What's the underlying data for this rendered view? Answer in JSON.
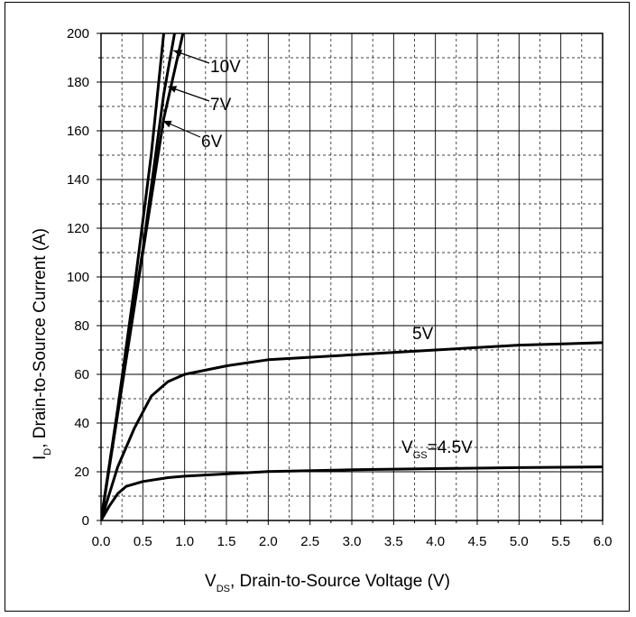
{
  "chart_data": {
    "type": "line",
    "xlabel_main": "V",
    "xlabel_sub": "DS",
    "xlabel_rest": ", Drain-to-Source Voltage (V)",
    "ylabel_main": "I",
    "ylabel_sub": "D",
    "ylabel_rest": ", Drain-to-Source Current (A)",
    "xlim": [
      0,
      6
    ],
    "ylim": [
      0,
      200
    ],
    "x_ticks": [
      "0.0",
      "0.5",
      "1.0",
      "1.5",
      "2.0",
      "2.5",
      "3.0",
      "3.5",
      "4.0",
      "4.5",
      "5.0",
      "5.5",
      "6.0"
    ],
    "y_ticks": [
      "0",
      "20",
      "40",
      "60",
      "80",
      "100",
      "120",
      "140",
      "160",
      "180",
      "200"
    ],
    "grid": true,
    "series": [
      {
        "name": "10V",
        "x": [
          0,
          0.25,
          0.5,
          0.75,
          0.98
        ],
        "y": [
          0,
          55,
          110,
          165,
          200
        ]
      },
      {
        "name": "7V",
        "x": [
          0,
          0.25,
          0.5,
          0.75,
          0.88
        ],
        "y": [
          0,
          56,
          111,
          175,
          200
        ]
      },
      {
        "name": "6V",
        "x": [
          0,
          0.2,
          0.4,
          0.6,
          0.75
        ],
        "y": [
          0,
          46,
          96,
          150,
          200
        ]
      },
      {
        "name": "5V",
        "x": [
          0,
          0.2,
          0.4,
          0.6,
          0.8,
          1.0,
          1.5,
          2.0,
          3.0,
          4.0,
          5.0,
          6.0
        ],
        "y": [
          0,
          22,
          38,
          51,
          57,
          60,
          63.5,
          66,
          68,
          70,
          72,
          73
        ]
      },
      {
        "name": "VGS=4.5V",
        "x": [
          0,
          0.1,
          0.2,
          0.3,
          0.5,
          0.8,
          1.0,
          2.0,
          3.0,
          4.0,
          5.0,
          6.0
        ],
        "y": [
          0,
          6,
          11,
          14,
          16,
          17.6,
          18.2,
          20.1,
          20.8,
          21.3,
          21.7,
          22
        ]
      }
    ],
    "annotations": {
      "label_10v": "10V",
      "label_7v": "7V",
      "label_6v": "6V",
      "label_5v": "5V",
      "label_vgs_main": "V",
      "label_vgs_sub": "GS",
      "label_vgs_rest": "=4.5V"
    }
  }
}
